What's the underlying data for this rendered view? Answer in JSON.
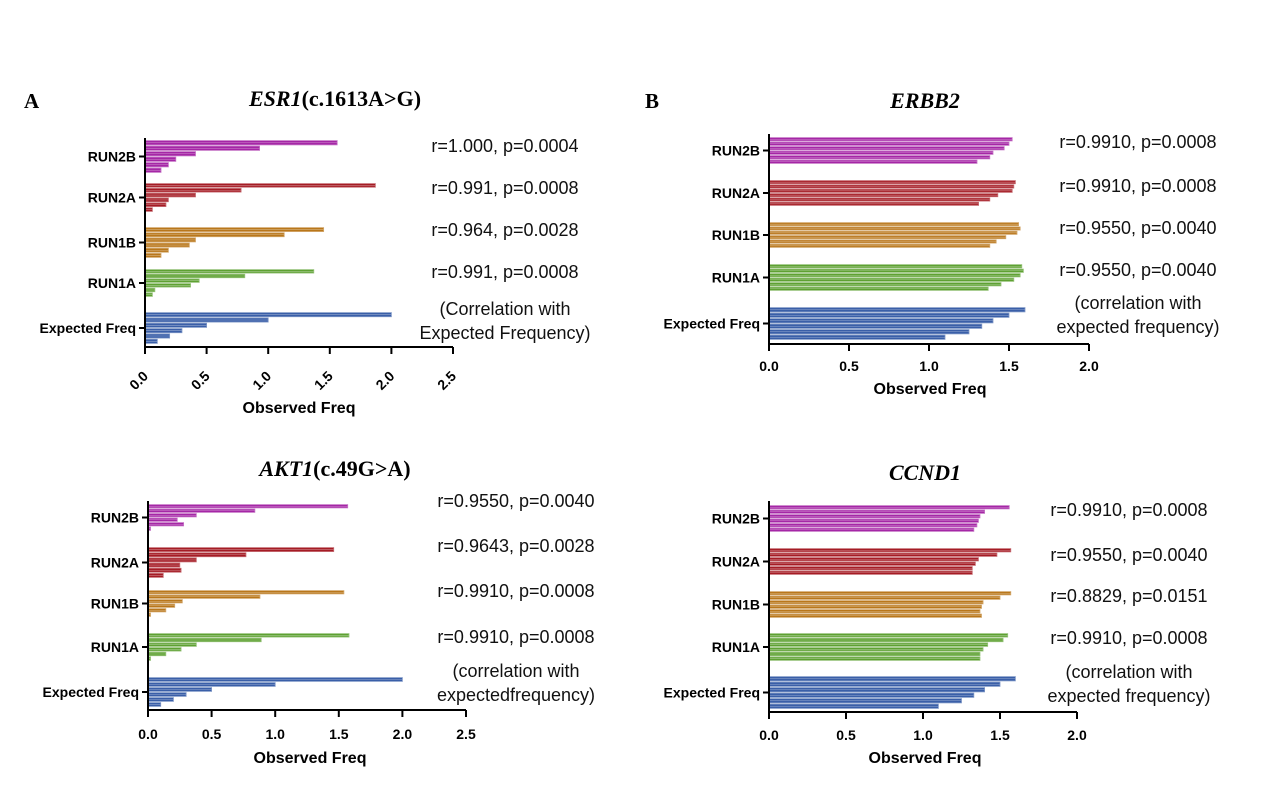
{
  "figure": {
    "panel_a_label": "A",
    "panel_b_label": "B",
    "colors": {
      "Expected Freq": "#3a5fa8",
      "RUN1A": "#5ea132",
      "RUN1B": "#b9771b",
      "RUN2A": "#a51c25",
      "RUN2B": "#a527a6"
    }
  },
  "chart_data": [
    {
      "type": "bar",
      "orientation": "horizontal",
      "title_gene": "ESR1",
      "title_variant": "(c.1613A>G)",
      "categories": [
        "RUN2B",
        "RUN2A",
        "RUN1B",
        "RUN1A",
        "Expected Freq"
      ],
      "series_per_category": {
        "RUN2B": [
          1.56,
          0.93,
          0.41,
          0.25,
          0.19,
          0.13
        ],
        "RUN2A": [
          1.87,
          0.78,
          0.41,
          0.19,
          0.17,
          0.06
        ],
        "RUN1B": [
          1.45,
          1.13,
          0.41,
          0.36,
          0.19,
          0.13
        ],
        "RUN1A": [
          1.37,
          0.81,
          0.44,
          0.37,
          0.08,
          0.06
        ],
        "Expected Freq": [
          2.0,
          1.0,
          0.5,
          0.3,
          0.2,
          0.1
        ]
      },
      "xlabel": "Observed Freq",
      "xlim": [
        0,
        2.5
      ],
      "ticks": [
        "0.0",
        "0.5",
        "1.0",
        "1.5",
        "2.0",
        "2.5"
      ],
      "tick_rotation": -45,
      "annotations": [
        "r=1.000, p=0.0004",
        "r=0.991, p=0.0008",
        "r=0.964, p=0.0028",
        "r=0.991, p=0.0008",
        "(Correlation with",
        "Expected Frequency)"
      ]
    },
    {
      "type": "bar",
      "orientation": "horizontal",
      "title_gene": "ERBB2",
      "title_variant": "",
      "categories": [
        "RUN2B",
        "RUN2A",
        "RUN1B",
        "RUN1A",
        "Expected Freq"
      ],
      "series_per_category": {
        "RUN2B": [
          1.52,
          1.5,
          1.47,
          1.4,
          1.38,
          1.3
        ],
        "RUN2A": [
          1.54,
          1.53,
          1.52,
          1.43,
          1.38,
          1.31
        ],
        "RUN1B": [
          1.56,
          1.57,
          1.55,
          1.48,
          1.42,
          1.38
        ],
        "RUN1A": [
          1.58,
          1.59,
          1.57,
          1.53,
          1.45,
          1.37
        ],
        "Expected Freq": [
          1.6,
          1.5,
          1.4,
          1.33,
          1.25,
          1.1
        ]
      },
      "xlabel": "Observed Freq",
      "xlim": [
        0,
        2.0
      ],
      "ticks": [
        "0.0",
        "0.5",
        "1.0",
        "1.5",
        "2.0"
      ],
      "tick_rotation": 0,
      "annotations": [
        "r=0.9910, p=0.0008",
        "r=0.9910, p=0.0008",
        "r=0.9550, p=0.0040",
        "r=0.9550, p=0.0040",
        "(correlation with",
        "expected frequency)"
      ]
    },
    {
      "type": "bar",
      "orientation": "horizontal",
      "title_gene": "AKT1",
      "title_variant": "(c.49G>A)",
      "categories": [
        "RUN2B",
        "RUN2A",
        "RUN1B",
        "RUN1A",
        "Expected Freq"
      ],
      "series_per_category": {
        "RUN2B": [
          1.57,
          0.84,
          0.38,
          0.23,
          0.28,
          0.02
        ],
        "RUN2A": [
          1.46,
          0.77,
          0.38,
          0.25,
          0.26,
          0.12
        ],
        "RUN1B": [
          1.54,
          0.88,
          0.27,
          0.21,
          0.14,
          0.02
        ],
        "RUN1A": [
          1.58,
          0.89,
          0.38,
          0.26,
          0.14,
          0.02
        ],
        "Expected Freq": [
          2.0,
          1.0,
          0.5,
          0.3,
          0.2,
          0.1
        ]
      },
      "xlabel": "Observed Freq",
      "xlim": [
        0,
        2.5
      ],
      "ticks": [
        "0.0",
        "0.5",
        "1.0",
        "1.5",
        "2.0",
        "2.5"
      ],
      "tick_rotation": 0,
      "annotations": [
        "r=0.9550, p=0.0040",
        "r=0.9643, p=0.0028",
        "r=0.9910, p=0.0008",
        "r=0.9910, p=0.0008",
        "(correlation with",
        "expectedfrequency)"
      ]
    },
    {
      "type": "bar",
      "orientation": "horizontal",
      "title_gene": "CCND1",
      "title_variant": "",
      "categories": [
        "RUN2B",
        "RUN2A",
        "RUN1B",
        "RUN1A",
        "Expected Freq"
      ],
      "series_per_category": {
        "RUN2B": [
          1.56,
          1.4,
          1.37,
          1.36,
          1.35,
          1.33
        ],
        "RUN2A": [
          1.57,
          1.48,
          1.36,
          1.34,
          1.32,
          1.32
        ],
        "RUN1B": [
          1.57,
          1.5,
          1.39,
          1.38,
          1.37,
          1.38
        ],
        "RUN1A": [
          1.55,
          1.52,
          1.42,
          1.39,
          1.37,
          1.37
        ],
        "Expected Freq": [
          1.6,
          1.5,
          1.4,
          1.33,
          1.25,
          1.1
        ]
      },
      "xlabel": "Observed Freq",
      "xlim": [
        0,
        2.0
      ],
      "ticks": [
        "0.0",
        "0.5",
        "1.0",
        "1.5",
        "2.0"
      ],
      "tick_rotation": 0,
      "annotations": [
        "r=0.9910, p=0.0008",
        "r=0.9550, p=0.0040",
        "r=0.8829, p=0.0151",
        "r=0.9910, p=0.0008",
        "(correlation with",
        "expected frequency)"
      ]
    }
  ]
}
